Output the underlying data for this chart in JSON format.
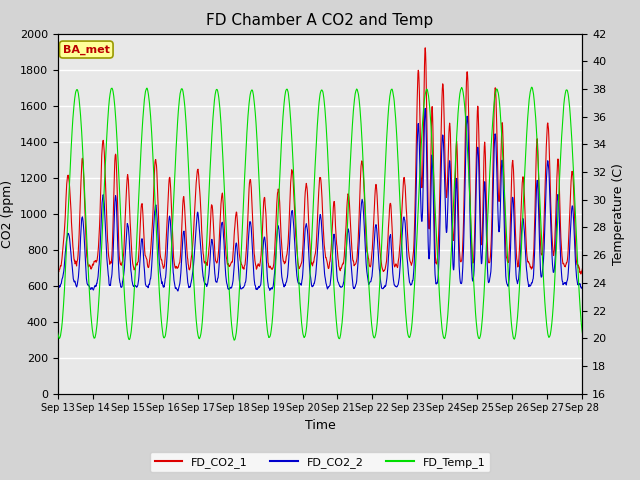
{
  "title": "FD Chamber A CO2 and Temp",
  "xlabel": "Time",
  "ylabel_left": "CO2 (ppm)",
  "ylabel_right": "Temperature (C)",
  "ylim_left": [
    0,
    2000
  ],
  "ylim_right": [
    16,
    42
  ],
  "x_tick_labels": [
    "Sep 13",
    "Sep 14",
    "Sep 15",
    "Sep 16",
    "Sep 17",
    "Sep 18",
    "Sep 19",
    "Sep 20",
    "Sep 21",
    "Sep 22",
    "Sep 23",
    "Sep 24",
    "Sep 25",
    "Sep 26",
    "Sep 27",
    "Sep 28"
  ],
  "legend_labels": [
    "FD_CO2_1",
    "FD_CO2_2",
    "FD_Temp_1"
  ],
  "legend_colors": [
    "#dd0000",
    "#0000cc",
    "#00dd00"
  ],
  "annotation_text": "BA_met",
  "annotation_bg": "#ffff99",
  "annotation_border": "#999900",
  "annotation_text_color": "#bb0000",
  "plot_bg_color": "#e8e8e8",
  "grid_color": "#ffffff",
  "title_fontsize": 11,
  "axis_fontsize": 9,
  "tick_fontsize": 8,
  "n_points": 1440,
  "seed": 1234
}
